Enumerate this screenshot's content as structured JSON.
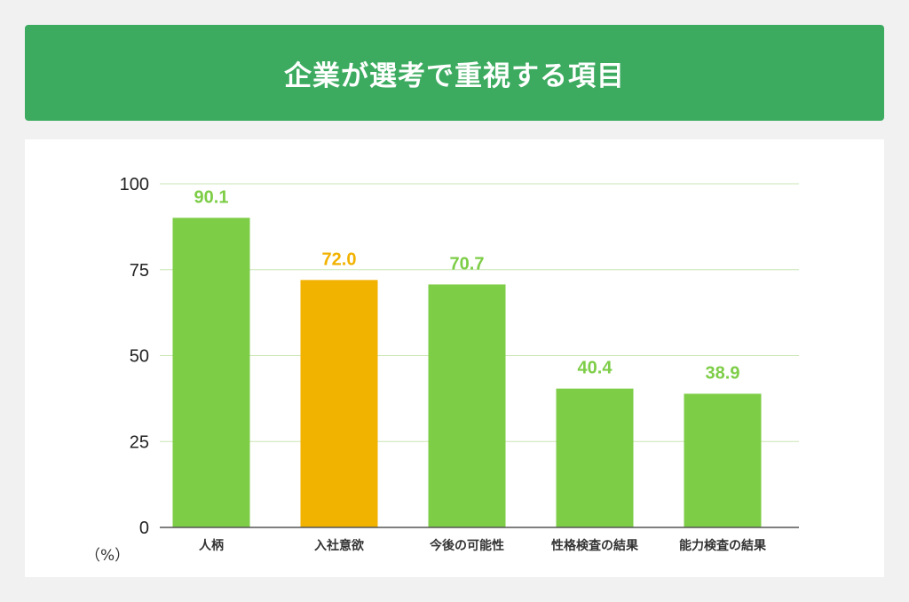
{
  "title": "企業が選考で重視する項目",
  "unit_label": "（%）",
  "colors": {
    "header_bg": "#3cab60",
    "bar_default": "#7dcd47",
    "bar_highlight": "#f2b200",
    "grid": "#c9e6b4",
    "axis": "#555555"
  },
  "chart_data": {
    "type": "bar",
    "categories": [
      "人柄",
      "入社意欲",
      "今後の可能性",
      "性格検査の結果",
      "能力検査の結果"
    ],
    "values": [
      90.1,
      72.0,
      70.7,
      40.4,
      38.9
    ],
    "value_labels": [
      "90.1",
      "72.0",
      "70.7",
      "40.4",
      "38.9"
    ],
    "highlight_index": 1,
    "ylim": [
      0,
      100
    ],
    "yticks": [
      0,
      25,
      50,
      75,
      100
    ],
    "grid": true,
    "legend": "none",
    "title": "企業が選考で重視する項目",
    "ylabel": "（%）",
    "xlabel": ""
  }
}
